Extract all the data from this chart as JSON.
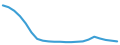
{
  "x": [
    0,
    1,
    2,
    3,
    4,
    5,
    6,
    7,
    8,
    9,
    10,
    11,
    12,
    13,
    14,
    15,
    16,
    17,
    18,
    19,
    20
  ],
  "y": [
    21.5,
    21.0,
    20.0,
    18.5,
    16.5,
    14.0,
    12.2,
    11.7,
    11.5,
    11.4,
    11.4,
    11.3,
    11.3,
    11.4,
    11.5,
    12.0,
    12.8,
    12.3,
    11.9,
    11.7,
    11.5
  ],
  "line_color": "#3c9fd5",
  "linewidth": 1.5,
  "background_color": "#ffffff",
  "ylim": [
    10.5,
    23.0
  ],
  "xlim": [
    -0.5,
    20.5
  ]
}
